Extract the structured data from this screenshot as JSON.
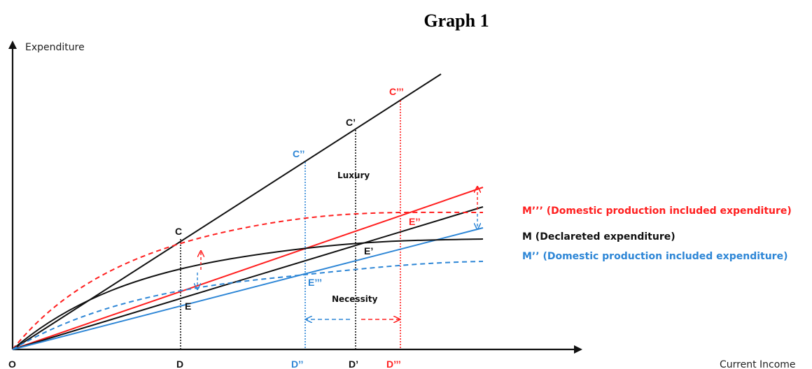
{
  "title": "Graph 1",
  "axes": {
    "y_label": "Expenditure",
    "x_label": "Current Income"
  },
  "colors": {
    "black": "#111111",
    "red": "#ff1f1f",
    "blue": "#2d86d6"
  },
  "points": {
    "origin": "O",
    "d": "D",
    "d2": "D’’",
    "d1": "D’",
    "d3": "D’’’",
    "c": "C",
    "c2": "C’’",
    "c1": "C’",
    "c3": "C’’’",
    "e": "E",
    "e3": "E’’’",
    "e1": "E’",
    "e2": "E’’"
  },
  "regions": {
    "luxury": "Luxury",
    "necessity": "Necessity"
  },
  "legend": {
    "m3": "M’’’ (Domestic production included expenditure)",
    "m": "M (Declareted expenditure)",
    "m2": "M’’ (Domestic production included expenditure)"
  }
}
